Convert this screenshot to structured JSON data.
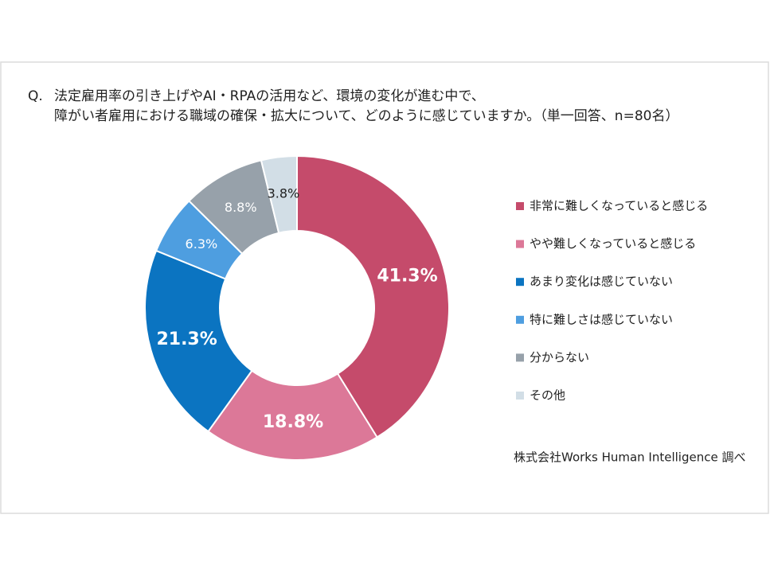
{
  "chart_data": {
    "type": "donut",
    "question_label": "Q.",
    "title_lines": [
      "法定雇用率の引き上げやAI・RPAの活用など、環境の変化が進む中で、",
      "障がい者雇用における職域の確保・拡大について、どのように感じていますか。（単一回答、n=80名）"
    ],
    "categories": [
      "非常に難しくなっていると感じる",
      "やや難しくなっていると感じる",
      "あまり変化は感じていない",
      "特に難しさは感じていない",
      "分からない",
      "その他"
    ],
    "values": [
      41.3,
      18.8,
      21.3,
      6.3,
      8.8,
      3.8
    ],
    "value_labels": [
      "41.3%",
      "18.8%",
      "21.3%",
      "6.3%",
      "8.8%",
      "3.8%"
    ],
    "colors": [
      "#c54b6b",
      "#dc7898",
      "#0b74c1",
      "#4e9ee0",
      "#97a1aa",
      "#d2dee6"
    ],
    "source": "株式会社Works Human Intelligence 調べ"
  }
}
